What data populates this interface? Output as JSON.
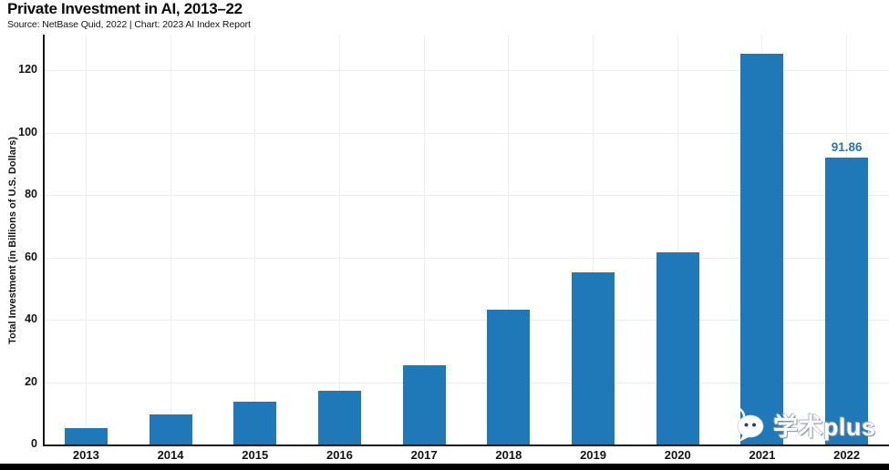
{
  "header": {
    "title": "Private Investment in AI, 2013–22",
    "subtitle": "Source: NetBase Quid, 2022 | Chart: 2023 AI Index Report"
  },
  "chart_data": {
    "type": "bar",
    "title": "Private Investment in AI, 2013–22",
    "subtitle": "Source: NetBase Quid, 2022 | Chart: 2023 AI Index Report",
    "categories": [
      "2013",
      "2014",
      "2015",
      "2016",
      "2017",
      "2018",
      "2019",
      "2020",
      "2021",
      "2022"
    ],
    "values": [
      5.3,
      9.7,
      13.6,
      17.2,
      25.5,
      43.2,
      55.2,
      61.7,
      125.4,
      91.86
    ],
    "xlabel": "",
    "ylabel": "Total Investment (in Billions of U.S. Dollars)",
    "yticks": [
      0,
      20,
      40,
      60,
      80,
      100,
      120
    ],
    "ylim": [
      0,
      131.4
    ],
    "grid": true,
    "legend": "none",
    "bar_color": "#1f78b7",
    "value_labels": [
      {
        "category": "2022",
        "text": "91.86",
        "color": "#2a73b5"
      }
    ]
  },
  "watermark": {
    "icon": "wechat-icon",
    "text": "学术plus"
  },
  "colors": {
    "bar": "#1f78b7",
    "axis": "#161616",
    "gridline": "#ededed",
    "value_label": "#2a73b5",
    "background": "#ffffff",
    "bottom_bar": "#000000"
  }
}
